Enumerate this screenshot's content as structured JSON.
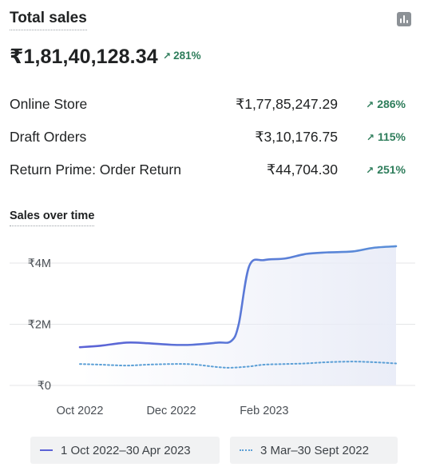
{
  "header": {
    "title": "Total sales",
    "icon": "bar-chart-icon",
    "total": "₹1,81,40,128.34",
    "total_change": "281%"
  },
  "breakdown": [
    {
      "label": "Online Store",
      "value": "₹1,77,85,247.29",
      "change": "286%"
    },
    {
      "label": "Draft Orders",
      "value": "₹3,10,176.75",
      "change": "115%"
    },
    {
      "label": "Return Prime: Order Return",
      "value": "₹44,704.30",
      "change": "251%"
    }
  ],
  "colors": {
    "primary_line": "#5b6fd8",
    "comparison_line": "#5b9fd6",
    "positive": "#2e7d5b"
  },
  "chart_data": {
    "type": "line",
    "title": "Sales over time",
    "y_ticks": [
      "₹4M",
      "₹2M",
      "₹0"
    ],
    "x_ticks": [
      "Oct 2022",
      "Dec 2022",
      "Feb 2023"
    ],
    "ylim": [
      0,
      4800000
    ],
    "grid": true,
    "legend_position": "bottom",
    "series": [
      {
        "name": "1 Oct 2022–30 Apr 2023",
        "style": "solid",
        "x": [
          "2022-10-01",
          "2022-10-15",
          "2022-11-01",
          "2022-11-15",
          "2022-12-01",
          "2022-12-15",
          "2023-01-01",
          "2023-01-10",
          "2023-01-15",
          "2023-01-22",
          "2023-02-01",
          "2023-02-15",
          "2023-03-01",
          "2023-03-15",
          "2023-04-01",
          "2023-04-15",
          "2023-04-30"
        ],
        "values": [
          1250000,
          1300000,
          1400000,
          1380000,
          1330000,
          1330000,
          1400000,
          1450000,
          2000000,
          3900000,
          4100000,
          4150000,
          4300000,
          4350000,
          4380000,
          4500000,
          4550000
        ]
      },
      {
        "name": "3 Mar–30 Sept 2022",
        "style": "dotted",
        "x": [
          "2022-10-01",
          "2022-10-15",
          "2022-11-01",
          "2022-11-15",
          "2022-12-01",
          "2022-12-15",
          "2023-01-01",
          "2023-01-10",
          "2023-01-22",
          "2023-02-01",
          "2023-02-15",
          "2023-03-01",
          "2023-03-15",
          "2023-04-01",
          "2023-04-15",
          "2023-04-30"
        ],
        "values": [
          700000,
          680000,
          650000,
          680000,
          700000,
          690000,
          600000,
          580000,
          620000,
          680000,
          700000,
          720000,
          760000,
          780000,
          760000,
          720000
        ]
      }
    ]
  }
}
